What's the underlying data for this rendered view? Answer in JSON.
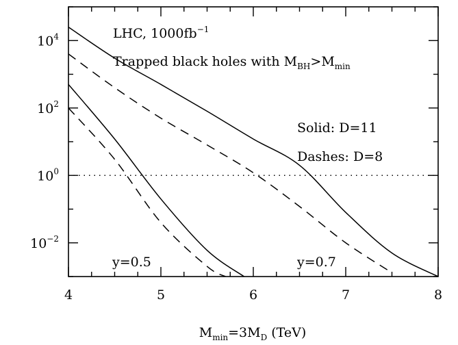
{
  "chart_data": {
    "type": "line",
    "xlabel": {
      "main": "M",
      "sub": "min",
      "mid": "=3M",
      "sub2": "D",
      "tail": " (TeV)"
    },
    "yscale": "log",
    "xlim": [
      4,
      8
    ],
    "ylim_exp": [
      -3,
      5
    ],
    "grid": false,
    "x_ticks": [
      "4",
      "5",
      "6",
      "7",
      "8"
    ],
    "x_tick_values": [
      4,
      5,
      6,
      7,
      8
    ],
    "y_ticks": [
      {
        "exp": -2,
        "base": "10",
        "sup": "−2"
      },
      {
        "exp": 0,
        "base": "10",
        "sup": "0"
      },
      {
        "exp": 2,
        "base": "10",
        "sup": "2"
      },
      {
        "exp": 4,
        "base": "10",
        "sup": "4"
      }
    ],
    "reference_line": {
      "y": 1,
      "style": "dotted"
    },
    "annotations": {
      "line1": {
        "pre": "LHC, 1000fb",
        "sup": "−1"
      },
      "line2": {
        "pre": "Trapped black holes with M",
        "sub1": "BH",
        "mid": ">M",
        "sub2": "min"
      },
      "solid": "Solid: D=11",
      "dashes": "Dashes: D=8",
      "y05": "y=0.5",
      "y07": "y=0.7"
    },
    "series": [
      {
        "D": 11,
        "y_param": 0.7,
        "style": "solid",
        "x": [
          4.0,
          4.5,
          5.0,
          5.5,
          6.0,
          6.5,
          7.0,
          7.5,
          8.0
        ],
        "y": [
          25000,
          3000,
          500,
          80,
          12,
          2,
          0.08,
          0.005,
          0.001
        ]
      },
      {
        "D": 8,
        "y_param": 0.7,
        "style": "dashed",
        "x": [
          4.0,
          4.5,
          5.0,
          5.5,
          6.0,
          6.5,
          7.0,
          7.5
        ],
        "y": [
          4000,
          400,
          50,
          8,
          1.2,
          0.12,
          0.01,
          0.0013
        ]
      },
      {
        "D": 11,
        "y_param": 0.5,
        "style": "solid",
        "x": [
          4.0,
          4.5,
          5.0,
          5.5,
          5.9
        ],
        "y": [
          500,
          12,
          0.2,
          0.006,
          0.001
        ]
      },
      {
        "D": 8,
        "y_param": 0.5,
        "style": "dashed",
        "x": [
          4.0,
          4.5,
          5.0,
          5.5,
          5.7
        ],
        "y": [
          100,
          3,
          0.04,
          0.002,
          0.001
        ]
      }
    ]
  }
}
